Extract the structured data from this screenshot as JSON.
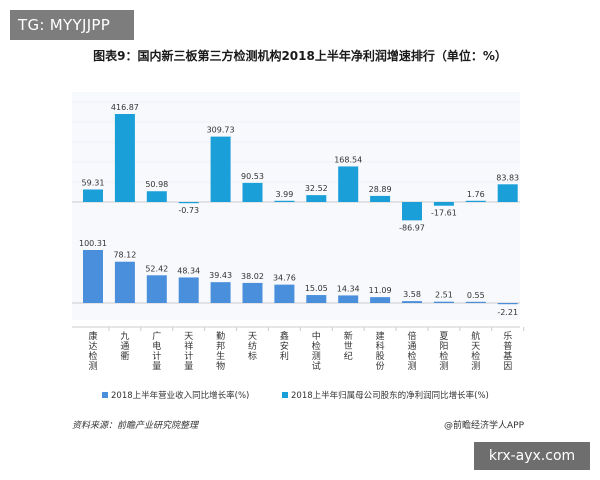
{
  "overlay": {
    "tg_label": "TG: MYYJJPP",
    "url_label": "krx-ayx.com"
  },
  "footer": {
    "source": "资料来源：前瞻产业研究院整理",
    "brand": "@前瞻经济学人APP"
  },
  "colors": {
    "revenue": "#4a8fdb",
    "profit": "#1b9fd9",
    "label": "#333333",
    "axis": "#cccccc"
  },
  "chart_data": {
    "type": "bar",
    "title": "图表9：国内新三板第三方检测机构2018上半年净利润增速排行（单位：%）",
    "categories": [
      "康达检测",
      "九通衢",
      "广电计量",
      "天祥计量",
      "勤邦生物",
      "天纺标",
      "鑫安利",
      "中检测试",
      "新世纪",
      "建科股份",
      "倍通检测",
      "夏阳检测",
      "航天检测",
      "乐普基因"
    ],
    "series": [
      {
        "name": "2018上半年营业收入同比增长率(%)",
        "values": [
          100.31,
          78.12,
          52.42,
          48.34,
          39.43,
          38.02,
          34.76,
          15.05,
          14.34,
          11.09,
          3.58,
          2.51,
          0.55,
          -2.21
        ]
      },
      {
        "name": "2018上半年归属母公司股东的净利润同比增长率(%)",
        "values": [
          59.31,
          416.87,
          50.98,
          -0.73,
          309.73,
          90.53,
          3.99,
          32.52,
          168.54,
          28.89,
          -86.97,
          -17.61,
          1.76,
          83.83
        ]
      }
    ],
    "legend_position": "bottom",
    "grid": true
  }
}
